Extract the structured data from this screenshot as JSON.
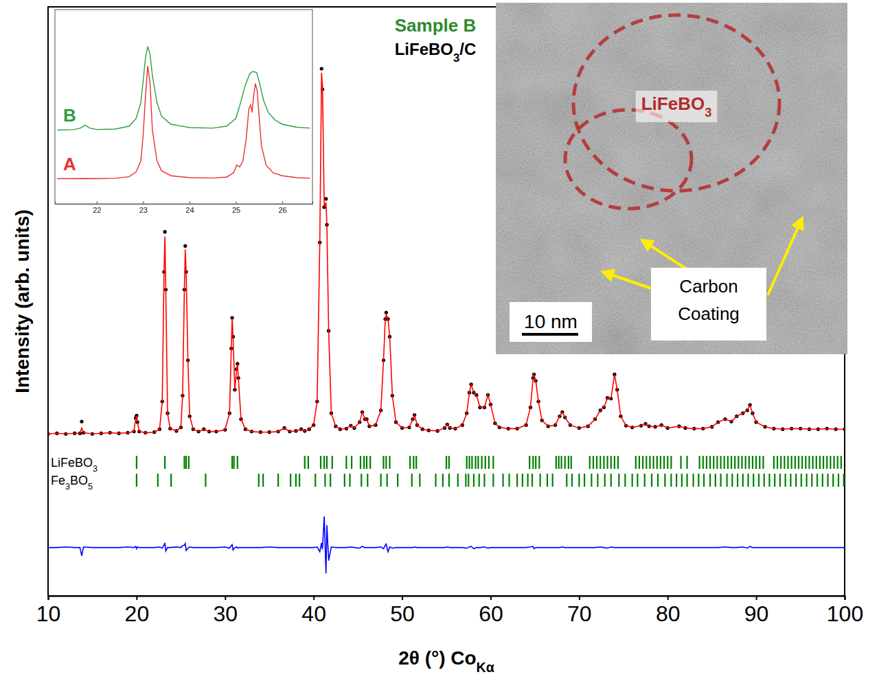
{
  "chart_data": [
    {
      "type": "scatter",
      "title": "Sample B",
      "subtitle": [
        "LiFeBO",
        {
          "sub": "3"
        },
        "/C"
      ],
      "x_label": [
        "2θ (°) Co",
        {
          "sub": "Kα"
        }
      ],
      "y_label": "Intensity (arb. units)",
      "xlim": [
        10,
        100
      ],
      "xticks": [
        10,
        20,
        30,
        40,
        50,
        60,
        70,
        80,
        90,
        100
      ],
      "ylim": [
        0,
        100
      ],
      "tick_labels": "x",
      "x": [
        10.0,
        11.0,
        12.0,
        13.0,
        13.6,
        13.8,
        14.0,
        15.0,
        16.0,
        17.0,
        18.0,
        19.0,
        19.7,
        19.9,
        20.0,
        20.1,
        20.3,
        21.0,
        22.0,
        22.6,
        22.9,
        23.1,
        23.2,
        23.3,
        23.5,
        23.8,
        24.5,
        25.0,
        25.2,
        25.4,
        25.5,
        25.6,
        25.8,
        26.0,
        26.4,
        27.0,
        27.6,
        28.2,
        29.0,
        30.0,
        30.5,
        30.7,
        30.8,
        30.9,
        31.1,
        31.3,
        31.4,
        31.5,
        31.8,
        32.3,
        33.0,
        34.0,
        35.0,
        36.0,
        36.7,
        37.3,
        38.0,
        38.6,
        39.0,
        39.5,
        40.0,
        40.4,
        40.7,
        40.9,
        41.0,
        41.2,
        41.4,
        41.5,
        41.7,
        42.0,
        42.5,
        43.0,
        43.7,
        44.2,
        44.6,
        45.2,
        45.5,
        45.8,
        46.0,
        46.3,
        47.0,
        47.6,
        47.9,
        48.1,
        48.2,
        48.4,
        48.6,
        48.9,
        49.3,
        50.0,
        50.8,
        51.2,
        51.4,
        51.7,
        52.3,
        53.0,
        54.0,
        54.8,
        55.1,
        55.4,
        56.0,
        56.8,
        57.3,
        57.6,
        57.8,
        58.1,
        58.4,
        58.8,
        59.3,
        59.7,
        60.0,
        60.5,
        61.0,
        62.0,
        63.0,
        64.0,
        64.5,
        64.8,
        64.9,
        65.1,
        65.4,
        65.8,
        66.5,
        67.3,
        67.8,
        68.1,
        68.4,
        69.0,
        70.0,
        71.0,
        71.8,
        72.4,
        72.8,
        73.2,
        73.6,
        74.0,
        74.3,
        74.7,
        75.3,
        76.0,
        77.0,
        77.5,
        77.9,
        78.6,
        79.3,
        80.0,
        81.3,
        82.0,
        83.0,
        84.0,
        85.0,
        85.7,
        86.5,
        87.2,
        87.8,
        88.5,
        89.0,
        89.3,
        89.6,
        90.0,
        91.0,
        92.0,
        93.0,
        94.0,
        95.0,
        96.0,
        97.0,
        98.0,
        99.0,
        100.0
      ],
      "series": [
        {
          "type": "scatter",
          "marker": "circle",
          "color": "#000000",
          "values": [
            27.5,
            27.6,
            27.5,
            27.6,
            27.6,
            29.6,
            27.7,
            27.5,
            27.6,
            27.7,
            27.6,
            27.7,
            27.9,
            30.2,
            30.6,
            29.5,
            27.9,
            27.7,
            27.8,
            28.3,
            33.0,
            55.0,
            61.8,
            52.0,
            31.0,
            28.4,
            28.0,
            28.6,
            34.0,
            52.0,
            59.4,
            55.0,
            40.0,
            30.5,
            28.3,
            27.9,
            28.3,
            27.9,
            27.9,
            28.2,
            31.0,
            42.0,
            47.2,
            44.0,
            35.0,
            38.5,
            39.4,
            37.0,
            30.0,
            28.3,
            27.9,
            27.8,
            27.8,
            27.9,
            28.5,
            27.9,
            28.0,
            28.3,
            28.0,
            28.3,
            29.0,
            33.0,
            60.0,
            89.5,
            86.0,
            66.0,
            67.4,
            63.0,
            45.0,
            31.0,
            28.8,
            28.3,
            28.4,
            28.9,
            28.5,
            29.5,
            31.2,
            30.0,
            30.0,
            28.8,
            29.0,
            31.5,
            40.0,
            47.0,
            48.1,
            47.0,
            44.0,
            34.0,
            29.5,
            28.5,
            28.6,
            30.0,
            30.7,
            29.0,
            28.3,
            28.1,
            28.0,
            28.5,
            29.1,
            28.5,
            28.4,
            29.0,
            31.0,
            34.5,
            35.9,
            34.5,
            34.1,
            32.0,
            32.0,
            34.1,
            32.5,
            29.3,
            28.6,
            28.4,
            28.4,
            29.0,
            32.0,
            37.0,
            37.6,
            36.5,
            33.0,
            29.8,
            28.8,
            29.0,
            30.5,
            31.2,
            30.3,
            29.0,
            28.5,
            28.8,
            30.0,
            31.5,
            32.0,
            33.6,
            33.5,
            37.6,
            35.0,
            30.5,
            28.9,
            28.6,
            28.9,
            29.2,
            28.8,
            28.7,
            29.0,
            28.5,
            28.8,
            28.5,
            28.4,
            28.4,
            28.7,
            29.5,
            30.0,
            29.6,
            30.5,
            31.0,
            31.5,
            32.4,
            31.0,
            29.5,
            28.7,
            28.4,
            28.3,
            28.4,
            28.4,
            28.3,
            28.3,
            28.4,
            28.3,
            28.3
          ]
        },
        {
          "type": "line",
          "color": "#ff0000",
          "values": [
            27.5,
            27.6,
            27.5,
            27.6,
            27.6,
            28.5,
            27.7,
            27.5,
            27.6,
            27.7,
            27.6,
            27.7,
            27.9,
            30.2,
            30.6,
            29.5,
            27.9,
            27.7,
            27.8,
            28.3,
            33.0,
            55.0,
            61.0,
            52.0,
            31.0,
            28.4,
            28.0,
            28.6,
            34.0,
            52.0,
            58.8,
            55.0,
            40.0,
            30.5,
            28.3,
            27.9,
            28.3,
            27.9,
            27.9,
            28.2,
            31.0,
            42.0,
            47.2,
            44.0,
            35.0,
            38.5,
            39.4,
            37.0,
            30.0,
            28.3,
            27.9,
            27.8,
            27.8,
            27.9,
            28.5,
            27.9,
            28.0,
            28.3,
            28.0,
            28.3,
            29.0,
            33.0,
            60.0,
            88.8,
            86.5,
            66.0,
            66.8,
            63.0,
            45.0,
            31.0,
            28.8,
            28.3,
            28.4,
            28.9,
            28.5,
            29.5,
            31.2,
            30.0,
            30.0,
            28.8,
            29.0,
            31.5,
            40.0,
            47.0,
            47.8,
            47.0,
            44.0,
            34.0,
            29.5,
            28.5,
            28.6,
            30.0,
            30.7,
            29.0,
            28.3,
            28.1,
            28.0,
            28.5,
            29.1,
            28.5,
            28.4,
            29.0,
            31.0,
            34.5,
            35.9,
            34.5,
            34.1,
            32.0,
            32.0,
            34.1,
            32.5,
            29.3,
            28.6,
            28.4,
            28.4,
            29.0,
            32.0,
            37.0,
            37.6,
            36.5,
            33.0,
            29.8,
            28.8,
            29.0,
            30.5,
            31.2,
            30.3,
            29.0,
            28.5,
            28.8,
            30.0,
            31.5,
            32.0,
            33.6,
            33.5,
            37.6,
            35.0,
            30.5,
            28.9,
            28.6,
            28.9,
            29.2,
            28.8,
            28.7,
            29.0,
            28.5,
            28.8,
            28.5,
            28.4,
            28.4,
            28.7,
            29.5,
            30.0,
            29.6,
            30.5,
            31.0,
            31.5,
            32.4,
            31.0,
            29.5,
            28.7,
            28.4,
            28.3,
            28.4,
            28.4,
            28.3,
            28.3,
            28.4,
            28.3,
            28.3
          ]
        },
        {
          "type": "line",
          "color": "#0000ff",
          "values": [
            8.2,
            8.2,
            8.3,
            8.2,
            8.2,
            6.8,
            8.3,
            8.2,
            8.2,
            8.2,
            8.2,
            8.3,
            8.2,
            8.4,
            8.0,
            8.3,
            8.2,
            8.2,
            8.2,
            8.3,
            8.1,
            8.6,
            9.0,
            7.6,
            8.2,
            8.2,
            8.3,
            8.2,
            8.5,
            8.6,
            8.9,
            7.7,
            8.1,
            8.3,
            8.2,
            8.2,
            8.2,
            8.2,
            8.2,
            8.3,
            8.1,
            8.5,
            8.7,
            7.8,
            8.2,
            8.3,
            8.1,
            8.2,
            8.2,
            8.2,
            8.2,
            8.2,
            8.3,
            8.2,
            8.2,
            8.2,
            8.2,
            8.2,
            8.2,
            8.2,
            8.2,
            8.3,
            7.5,
            9.0,
            7.9,
            13.5,
            3.8,
            12.0,
            6.0,
            8.3,
            8.2,
            8.2,
            8.2,
            8.3,
            8.2,
            8.1,
            8.4,
            8.2,
            8.2,
            8.2,
            8.2,
            8.3,
            8.0,
            8.6,
            8.8,
            7.5,
            8.3,
            8.1,
            8.2,
            8.2,
            8.2,
            8.2,
            8.3,
            8.2,
            8.2,
            8.2,
            8.2,
            8.2,
            8.3,
            8.2,
            8.2,
            8.2,
            8.1,
            8.3,
            8.4,
            8.0,
            8.2,
            8.2,
            8.3,
            8.1,
            8.2,
            8.2,
            8.2,
            8.2,
            8.2,
            8.2,
            8.3,
            8.4,
            8.0,
            8.2,
            8.2,
            8.2,
            8.2,
            8.2,
            8.2,
            8.3,
            8.2,
            8.2,
            8.2,
            8.2,
            8.2,
            8.3,
            8.2,
            8.1,
            8.3,
            8.2,
            8.2,
            8.2,
            8.2,
            8.2,
            8.2,
            8.2,
            8.2,
            8.2,
            8.2,
            8.2,
            8.2,
            8.2,
            8.2,
            8.2,
            8.2,
            8.2,
            8.3,
            8.2,
            8.2,
            8.3,
            8.1,
            8.4,
            8.2,
            8.2,
            8.2,
            8.2,
            8.2,
            8.2,
            8.2,
            8.2,
            8.2,
            8.2,
            8.2,
            8.2
          ]
        }
      ],
      "reflections": [
        {
          "label": [
            "LiFeBO",
            {
              "sub": "3"
            }
          ],
          "color": "#008000",
          "x": [
            20.0,
            23.2,
            25.4,
            25.6,
            25.9,
            30.8,
            31.0,
            31.4,
            39.0,
            39.4,
            40.8,
            41.2,
            41.5,
            42.1,
            43.7,
            44.3,
            45.3,
            45.7,
            46.0,
            46.4,
            47.9,
            48.2,
            48.6,
            50.9,
            51.3,
            51.6,
            55.0,
            55.3,
            57.3,
            57.6,
            57.9,
            58.3,
            58.6,
            59.0,
            59.4,
            59.8,
            60.3,
            64.4,
            64.8,
            65.1,
            65.5,
            67.4,
            67.7,
            68.0,
            68.4,
            68.8,
            69.1,
            71.2,
            71.6,
            72.0,
            72.4,
            72.8,
            73.2,
            73.6,
            74.0,
            74.4,
            76.4,
            76.8,
            77.2,
            77.6,
            78.0,
            78.4,
            78.8,
            79.2,
            79.6,
            80.0,
            80.4,
            81.5,
            82.2,
            83.6,
            84.0,
            84.4,
            84.8,
            85.2,
            85.6,
            86.0,
            86.4,
            86.8,
            87.2,
            87.6,
            88.0,
            88.4,
            88.8,
            89.2,
            89.6,
            90.0,
            90.4,
            90.8,
            92.0,
            92.4,
            92.8,
            93.2,
            93.6,
            94.0,
            94.4,
            94.8,
            95.2,
            95.6,
            96.0,
            96.4,
            96.8,
            97.2,
            97.6,
            98.0,
            98.4,
            98.8,
            99.2,
            99.6
          ]
        },
        {
          "label": [
            "Fe",
            {
              "sub": "3"
            },
            "BO",
            {
              "sub": "5"
            }
          ],
          "color": "#008000",
          "x": [
            20.0,
            22.4,
            23.9,
            27.8,
            33.8,
            34.3,
            36.0,
            37.4,
            38.0,
            38.4,
            40.2,
            41.3,
            41.9,
            43.5,
            44.1,
            45.4,
            46.1,
            47.6,
            48.3,
            49.5,
            51.1,
            52.0,
            53.8,
            54.6,
            55.3,
            56.3,
            57.2,
            57.5,
            58.1,
            58.7,
            59.3,
            60.3,
            61.4,
            62.1,
            63.0,
            63.6,
            64.2,
            64.7,
            65.6,
            66.4,
            67.0,
            68.6,
            69.2,
            70.0,
            70.6,
            71.4,
            72.1,
            72.9,
            73.6,
            74.5,
            75.2,
            76.0,
            76.6,
            77.4,
            78.2,
            78.9,
            79.7,
            80.4,
            81.0,
            81.6,
            82.2,
            82.9,
            83.5,
            84.1,
            84.8,
            85.4,
            86.0,
            86.7,
            87.3,
            87.9,
            88.5,
            89.1,
            89.7,
            90.3,
            90.9,
            91.5,
            92.1,
            92.7,
            93.3,
            93.9,
            94.5,
            95.1,
            95.7,
            96.3,
            96.9,
            97.5,
            98.1,
            98.7,
            99.3,
            99.9
          ]
        }
      ]
    },
    {
      "type": "line",
      "xlim": [
        21.1,
        26.65
      ],
      "xticks": [
        22,
        23,
        24,
        25,
        26
      ],
      "ylim": [
        0,
        100
      ],
      "tick_labels": "x",
      "series": [
        {
          "name": "B",
          "color": "#2e9e3e",
          "x": [
            21.15,
            21.5,
            21.65,
            21.75,
            21.85,
            22.0,
            22.4,
            22.7,
            22.85,
            22.95,
            23.0,
            23.05,
            23.1,
            23.15,
            23.2,
            23.3,
            23.4,
            23.6,
            24.0,
            24.5,
            24.8,
            25.0,
            25.1,
            25.2,
            25.3,
            25.35,
            25.4,
            25.45,
            25.5,
            25.6,
            25.7,
            25.85,
            26.0,
            26.3,
            26.6
          ],
          "values": [
            38.0,
            38.2,
            39.0,
            40.5,
            39.0,
            38.3,
            38.5,
            40.0,
            44.0,
            52.0,
            63.0,
            75.0,
            81.0,
            77.0,
            66.0,
            52.0,
            45.0,
            41.0,
            39.3,
            39.0,
            40.0,
            44.0,
            52.0,
            61.0,
            67.0,
            68.0,
            68.0,
            67.5,
            63.0,
            53.0,
            47.0,
            43.0,
            41.0,
            39.5,
            39.0
          ]
        },
        {
          "name": "A",
          "color": "#e8322f",
          "x": [
            21.15,
            21.5,
            21.75,
            22.0,
            22.4,
            22.7,
            22.85,
            22.95,
            23.0,
            23.05,
            23.1,
            23.15,
            23.2,
            23.3,
            23.4,
            23.6,
            24.0,
            24.5,
            24.8,
            24.95,
            25.02,
            25.08,
            25.15,
            25.22,
            25.28,
            25.32,
            25.35,
            25.38,
            25.42,
            25.46,
            25.5,
            25.55,
            25.65,
            25.8,
            26.0,
            26.3,
            26.6
          ],
          "values": [
            13.0,
            13.0,
            13.1,
            13.0,
            13.2,
            14.0,
            16.5,
            22.0,
            35.0,
            55.0,
            71.0,
            62.0,
            38.0,
            22.0,
            17.0,
            14.5,
            13.5,
            13.3,
            13.8,
            16.0,
            20.0,
            19.0,
            22.0,
            33.0,
            49.0,
            51.0,
            47.0,
            55.0,
            62.0,
            58.0,
            45.0,
            30.0,
            20.0,
            16.0,
            14.5,
            13.5,
            13.2
          ]
        }
      ]
    }
  ],
  "image": {
    "label": [
      "LiFeBO",
      {
        "sub": "3"
      }
    ],
    "annotation": "Carbon Coating",
    "scale_bar": "10 nm"
  }
}
